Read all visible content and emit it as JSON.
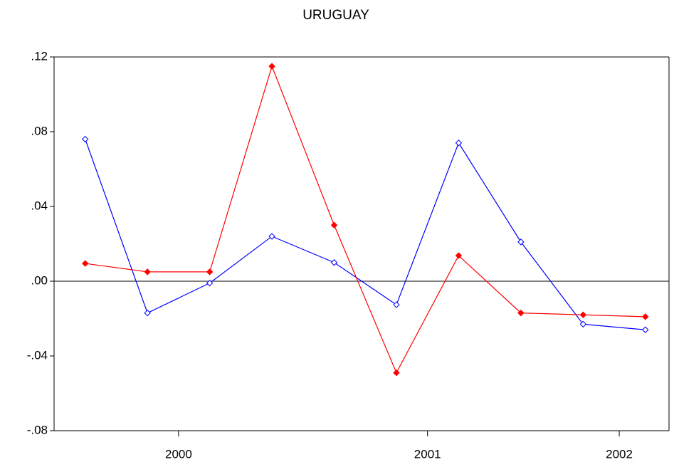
{
  "chart_data": {
    "type": "line",
    "title": "URUGUAY",
    "x": [
      2000.125,
      2000.375,
      2000.625,
      2000.875,
      2001.125,
      2001.375,
      2001.625,
      2001.875,
      2002.125,
      2002.375
    ],
    "series": [
      {
        "color": "#0000ff",
        "marker": "hollow",
        "values": [
          0.076,
          -0.017,
          -0.001,
          0.024,
          0.01,
          -0.0126,
          0.074,
          0.021,
          -0.023,
          -0.026
        ]
      },
      {
        "color": "#ff0000",
        "marker": "filled",
        "values": [
          0.0095,
          0.005,
          0.005,
          0.115,
          0.03,
          -0.049,
          0.0137,
          -0.017,
          -0.018,
          -0.019
        ]
      }
    ],
    "xlim": [
      2000,
      2002.47
    ],
    "xticks": [
      {
        "value": 2000.5,
        "label": "2000"
      },
      {
        "value": 2001.5,
        "label": "2001"
      },
      {
        "value": 2002.27,
        "label": "2002"
      }
    ],
    "ylim": [
      -0.08,
      0.12
    ],
    "yticks": [
      {
        "value": 0.12,
        "label": ".12"
      },
      {
        "value": 0.08,
        "label": ".08"
      },
      {
        "value": 0.04,
        "label": ".04"
      },
      {
        "value": 0,
        "label": ".00"
      },
      {
        "value": -0.04,
        "label": "-.04"
      },
      {
        "value": -0.08,
        "label": "-.08"
      }
    ],
    "grid": false
  }
}
